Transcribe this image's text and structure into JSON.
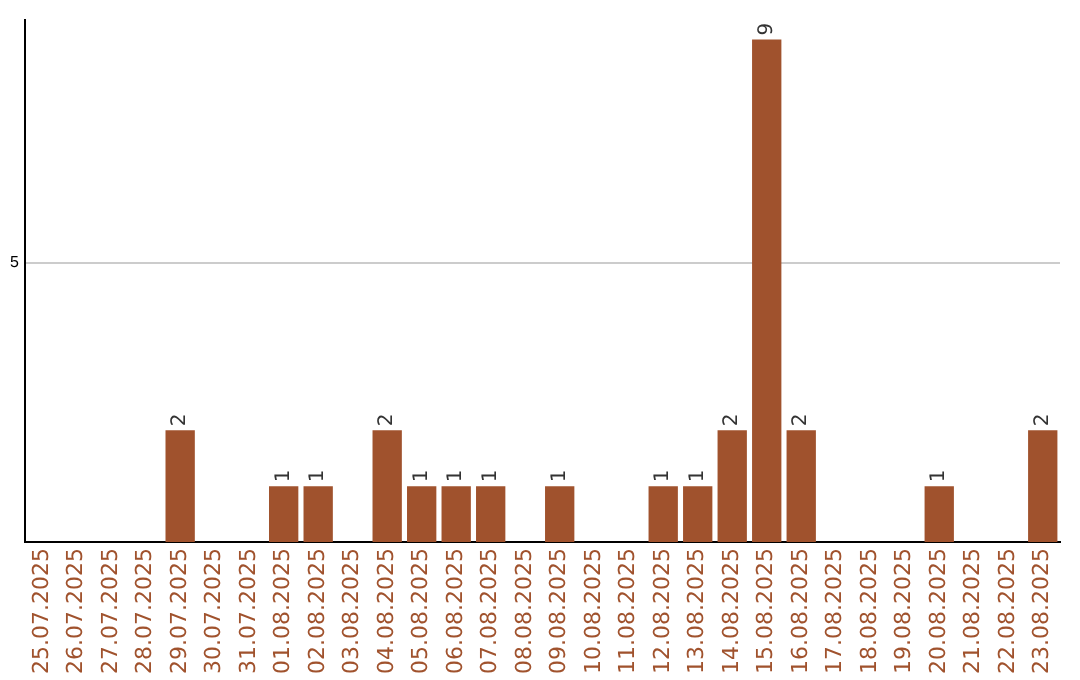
{
  "chart_data": {
    "type": "bar",
    "categories": [
      "25.07.2025",
      "26.07.2025",
      "27.07.2025",
      "28.07.2025",
      "29.07.2025",
      "30.07.2025",
      "31.07.2025",
      "01.08.2025",
      "02.08.2025",
      "03.08.2025",
      "04.08.2025",
      "05.08.2025",
      "06.08.2025",
      "07.08.2025",
      "08.08.2025",
      "09.08.2025",
      "10.08.2025",
      "11.08.2025",
      "12.08.2025",
      "13.08.2025",
      "14.08.2025",
      "15.08.2025",
      "16.08.2025",
      "17.08.2025",
      "18.08.2025",
      "19.08.2025",
      "20.08.2025",
      "21.08.2025",
      "22.08.2025",
      "23.08.2025"
    ],
    "values": [
      0,
      0,
      0,
      0,
      2,
      0,
      0,
      1,
      1,
      0,
      2,
      1,
      1,
      1,
      0,
      1,
      0,
      0,
      1,
      1,
      2,
      9,
      2,
      0,
      0,
      0,
      1,
      0,
      0,
      2
    ],
    "value_labels": [
      null,
      null,
      null,
      null,
      "2",
      null,
      null,
      "1",
      "1",
      null,
      "2",
      "1",
      "1",
      "1",
      null,
      "1",
      null,
      null,
      "1",
      "1",
      "2",
      "9",
      "2",
      null,
      null,
      null,
      "1",
      null,
      null,
      "2"
    ],
    "color": "#a0522d",
    "ylim": [
      0,
      9.35
    ],
    "yticks": [
      5
    ],
    "grid": "y",
    "legend": false
  }
}
